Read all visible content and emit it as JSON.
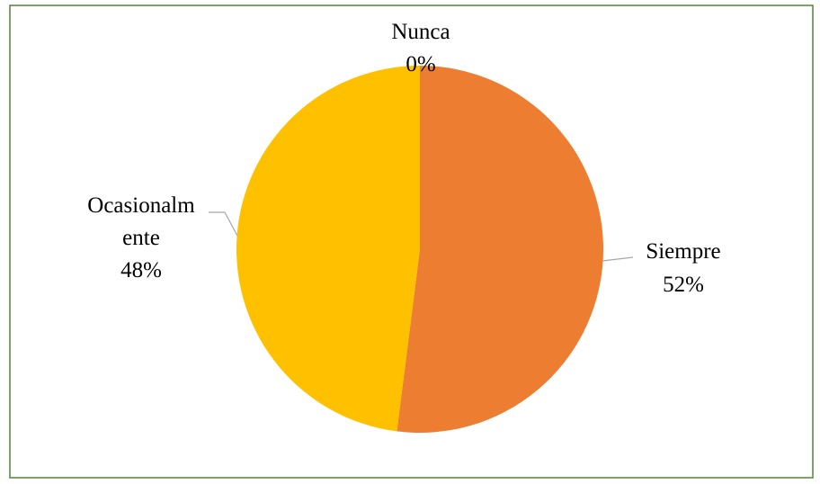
{
  "chart_data": {
    "type": "pie",
    "title": "",
    "slices": [
      {
        "name": "Siempre",
        "value": 52,
        "pct_label": "52%",
        "color": "#ED7D31"
      },
      {
        "name": "Ocasionalmente",
        "value": 48,
        "pct_label": "48%",
        "color": "#FFC000"
      },
      {
        "name": "Nunca",
        "value": 0,
        "pct_label": "0%",
        "color": "#A5A5A5"
      }
    ],
    "labels": {
      "siempre": {
        "line1": "Siempre",
        "line2": "52%"
      },
      "ocasionalmente": {
        "line1": "Ocasionalm",
        "line2": "ente",
        "line3": "48%"
      },
      "nunca": {
        "line1": "Nunca",
        "line2": "0%"
      }
    },
    "start_angle": "12 o'clock",
    "direction": "clockwise",
    "legend": "none",
    "data_labels": "category name and percentage",
    "border_color": "#548235",
    "leader_line_color": "#A6A6A6"
  }
}
